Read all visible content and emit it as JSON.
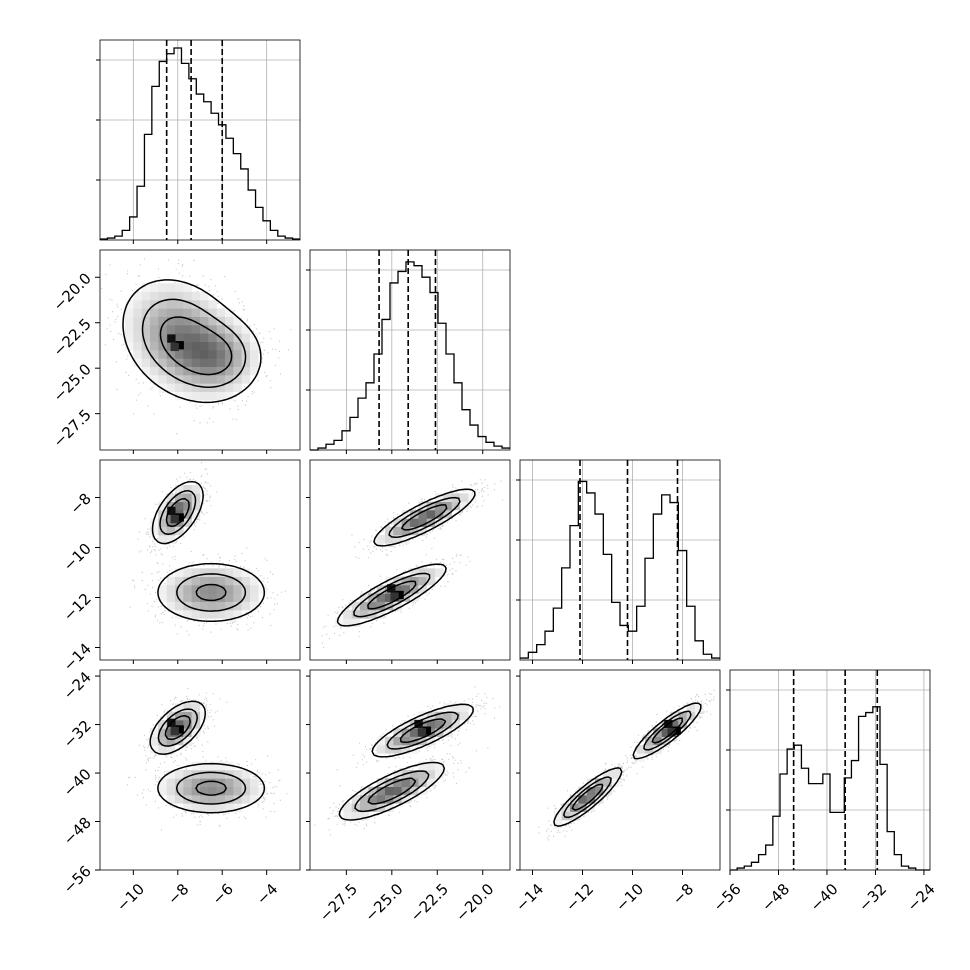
{
  "chart_data": {
    "type": "corner",
    "parameters": 4,
    "axes": [
      {
        "index": 0,
        "range": [
          -11.5,
          -2.5
        ],
        "ticks": [
          -10,
          -8,
          -6,
          -4
        ],
        "tick_labels": [
          "−10",
          "−8",
          "−6",
          "−4"
        ],
        "quantiles": [
          -8.5,
          -7.4,
          -6.0
        ],
        "hist_max": 1.0,
        "histogram": [
          0.005,
          0.01,
          0.02,
          0.05,
          0.12,
          0.28,
          0.55,
          0.8,
          0.93,
          0.97,
          1.0,
          0.92,
          0.84,
          0.76,
          0.72,
          0.66,
          0.6,
          0.53,
          0.45,
          0.37,
          0.26,
          0.17,
          0.1,
          0.05,
          0.02,
          0.01,
          0.005
        ]
      },
      {
        "index": 1,
        "range": [
          -29.5,
          -18.5
        ],
        "ticks": [
          -27.5,
          -25.0,
          -22.5,
          -20.0
        ],
        "tick_labels": [
          "−27.5",
          "−25.0",
          "−22.5",
          "−20.0"
        ],
        "quantiles": [
          -25.7,
          -24.1,
          -22.6
        ],
        "hist_max": 1.0,
        "histogram": [
          0.0,
          0.01,
          0.03,
          0.05,
          0.1,
          0.17,
          0.27,
          0.35,
          0.5,
          0.68,
          0.87,
          0.93,
          0.98,
          0.96,
          0.9,
          0.82,
          0.66,
          0.5,
          0.35,
          0.21,
          0.13,
          0.07,
          0.04,
          0.02,
          0.01
        ]
      },
      {
        "index": 2,
        "range": [
          -14.5,
          -6.5
        ],
        "ticks": [
          -14,
          -12,
          -10,
          -8
        ],
        "tick_labels": [
          "−14",
          "−12",
          "−10",
          "−8"
        ],
        "quantiles": [
          -12.1,
          -10.2,
          -8.2
        ],
        "hist_max": 1.0,
        "histogram": [
          0.01,
          0.04,
          0.08,
          0.15,
          0.27,
          0.48,
          0.7,
          0.93,
          0.87,
          0.76,
          0.55,
          0.3,
          0.18,
          0.15,
          0.28,
          0.53,
          0.76,
          0.86,
          0.82,
          0.57,
          0.28,
          0.1,
          0.03,
          0.01
        ]
      },
      {
        "index": 3,
        "range": [
          -56,
          -23
        ],
        "ticks": [
          -56,
          -48,
          -40,
          -32,
          -24
        ],
        "tick_labels": [
          "−56",
          "−48",
          "−40",
          "−32",
          "−24"
        ],
        "quantiles": [
          -45.5,
          -37.0,
          -31.7
        ],
        "hist_max": 1.0,
        "histogram": [
          0.0,
          0.01,
          0.02,
          0.04,
          0.08,
          0.13,
          0.28,
          0.5,
          0.63,
          0.65,
          0.53,
          0.45,
          0.45,
          0.5,
          0.3,
          0.3,
          0.48,
          0.57,
          0.8,
          0.82,
          0.85,
          0.55,
          0.2,
          0.08,
          0.02,
          0.01,
          0.0,
          0.0
        ]
      }
    ],
    "pairs": [
      {
        "row": 1,
        "col": 0,
        "blobs": [
          {
            "cx": -7.8,
            "cy": -23.4,
            "sx": 1.35,
            "sy": 1.65,
            "rho": -0.25,
            "w": 1.0,
            "peak": [
              -8.1,
              -23.6
            ]
          },
          {
            "cx": -6.1,
            "cy": -24.4,
            "sx": 1.0,
            "sy": 1.1,
            "rho": 0.0,
            "w": 0.6
          }
        ]
      },
      {
        "row": 2,
        "col": 0,
        "blobs": [
          {
            "cx": -8.0,
            "cy": -8.6,
            "sx": 0.55,
            "sy": 0.6,
            "rho": 0.55,
            "w": 1.0,
            "peak": [
              -8.1,
              -8.7
            ]
          },
          {
            "cx": -6.5,
            "cy": -11.8,
            "sx": 1.25,
            "sy": 0.6,
            "rho": 0.0,
            "w": 0.75
          }
        ]
      },
      {
        "row": 2,
        "col": 1,
        "blobs": [
          {
            "cx": -23.2,
            "cy": -8.8,
            "sx": 1.35,
            "sy": 0.55,
            "rho": 0.85,
            "w": 1.0
          },
          {
            "cx": -25.0,
            "cy": -11.9,
            "sx": 1.45,
            "sy": 0.6,
            "rho": 0.85,
            "w": 1.0,
            "peak": [
              -24.8,
              -11.8
            ]
          }
        ]
      },
      {
        "row": 3,
        "col": 0,
        "blobs": [
          {
            "cx": -8.0,
            "cy": -32.5,
            "sx": 0.6,
            "sy": 2.1,
            "rho": 0.55,
            "w": 1.0,
            "peak": [
              -8.1,
              -32.4
            ]
          },
          {
            "cx": -6.5,
            "cy": -42.5,
            "sx": 1.25,
            "sy": 2.1,
            "rho": 0.0,
            "w": 0.75
          }
        ]
      },
      {
        "row": 3,
        "col": 1,
        "blobs": [
          {
            "cx": -23.3,
            "cy": -33.0,
            "sx": 1.35,
            "sy": 2.1,
            "rho": 0.8,
            "w": 1.0,
            "peak": [
              -23.3,
              -32.6
            ]
          },
          {
            "cx": -25.0,
            "cy": -43.0,
            "sx": 1.4,
            "sy": 2.3,
            "rho": 0.8,
            "w": 1.0
          }
        ]
      },
      {
        "row": 3,
        "col": 2,
        "blobs": [
          {
            "cx": -8.6,
            "cy": -33.0,
            "sx": 0.65,
            "sy": 2.2,
            "rho": 0.88,
            "w": 1.0,
            "peak": [
              -8.4,
              -32.6
            ]
          },
          {
            "cx": -11.8,
            "cy": -44.0,
            "sx": 0.65,
            "sy": 2.3,
            "rho": 0.88,
            "w": 1.0
          }
        ]
      }
    ]
  }
}
